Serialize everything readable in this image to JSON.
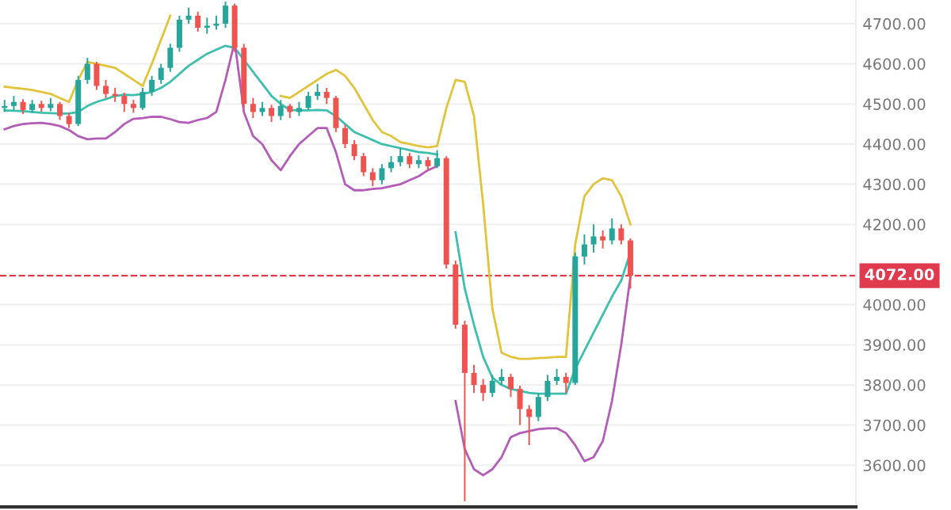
{
  "chart_data": {
    "type": "candlestick",
    "categories": [
      null,
      null,
      null,
      null,
      null,
      null,
      null,
      null,
      null,
      null,
      null,
      null,
      null,
      null,
      null,
      null,
      null,
      null,
      null,
      null,
      null,
      null,
      null,
      null,
      null,
      null,
      null,
      null,
      null,
      null,
      null,
      null,
      null,
      null,
      null,
      null,
      null,
      null,
      null,
      null,
      null,
      null,
      null,
      null,
      null,
      null,
      null,
      null,
      null,
      null,
      null,
      null,
      null,
      null,
      null,
      null,
      null,
      null,
      null,
      null,
      null,
      null,
      null,
      null,
      null,
      null,
      null,
      null,
      null,
      null,
      null,
      null,
      null,
      null,
      null,
      null,
      null,
      null,
      null,
      null,
      null,
      null,
      null,
      null,
      null,
      null,
      null,
      null,
      null,
      null,
      null,
      null,
      null
    ],
    "colors": [
      "#26a69a",
      "#26a69a",
      "#ef5350",
      "#26a69a",
      "#ef5350",
      "#26a69a",
      "#ef5350",
      "#ef5350",
      "#26a69a",
      "#26a69a",
      "#ef5350",
      "#ef5350",
      "#ef5350",
      "#ef5350",
      "#ef5350",
      "#26a69a",
      "#26a69a",
      "#26a69a",
      "#26a69a",
      "#26a69a",
      "#26a69a",
      "#ef5350",
      "#26a69a",
      "#26a69a",
      "#26a69a",
      "#ef5350",
      "#ef5350",
      "#ef5350",
      "#26a69a",
      "#ef5350",
      "#26a69a",
      "#ef5350",
      "#26a69a",
      "#26a69a",
      "#26a69a",
      "#ef5350",
      "#ef5350",
      "#ef5350",
      "#ef5350",
      "#ef5350",
      "#ef5350",
      "#26a69a",
      "#26a69a",
      "#26a69a",
      "#ef5350",
      "#26a69a",
      "#ef5350",
      "#26a69a",
      "#ef5350",
      "#ef5350",
      "#ef5350",
      "#ef5350",
      "#ef5350",
      "#26a69a",
      "#26a69a",
      "#ef5350",
      "#ef5350",
      "#ef5350",
      "#26a69a",
      "#26a69a",
      "#26a69a",
      "#ef5350",
      "#26a69a",
      "#26a69a",
      "#26a69a",
      "#ef5350",
      "#26a69a",
      "#ef5350",
      "#ef5350",
      null,
      null,
      null,
      null,
      null,
      null,
      null,
      null,
      null,
      null,
      null,
      null,
      null,
      null,
      null,
      null,
      null,
      null,
      null,
      null,
      null,
      null,
      null,
      null
    ],
    "ohlc": [
      [
        4490,
        4510,
        4480,
        4495
      ],
      [
        4495,
        4520,
        4485,
        4505
      ],
      [
        4505,
        4512,
        4475,
        4485
      ],
      [
        4485,
        4510,
        4478,
        4500
      ],
      [
        4500,
        4508,
        4480,
        4490
      ],
      [
        4490,
        4515,
        4482,
        4500
      ],
      [
        4500,
        4505,
        4460,
        4470
      ],
      [
        4470,
        4478,
        4440,
        4450
      ],
      [
        4450,
        4570,
        4445,
        4560
      ],
      [
        4560,
        4615,
        4550,
        4600
      ],
      [
        4600,
        4605,
        4535,
        4545
      ],
      [
        4545,
        4560,
        4515,
        4525
      ],
      [
        4525,
        4540,
        4505,
        4520
      ],
      [
        4520,
        4528,
        4480,
        4500
      ],
      [
        4500,
        4510,
        4478,
        4490
      ],
      [
        4490,
        4540,
        4485,
        4530
      ],
      [
        4530,
        4570,
        4520,
        4560
      ],
      [
        4560,
        4600,
        4550,
        4590
      ],
      [
        4590,
        4650,
        4580,
        4640
      ],
      [
        4640,
        4720,
        4630,
        4710
      ],
      [
        4710,
        4740,
        4700,
        4720
      ],
      [
        4720,
        4730,
        4680,
        4690
      ],
      [
        4690,
        4715,
        4675,
        4695
      ],
      [
        4695,
        4720,
        4685,
        4700
      ],
      [
        4700,
        4755,
        4690,
        4745
      ],
      [
        4745,
        4750,
        4630,
        4640
      ],
      [
        4640,
        4650,
        4490,
        4500
      ],
      [
        4500,
        4515,
        4465,
        4480
      ],
      [
        4480,
        4505,
        4470,
        4490
      ],
      [
        4490,
        4498,
        4455,
        4470
      ],
      [
        4470,
        4510,
        4460,
        4495
      ],
      [
        4495,
        4500,
        4465,
        4480
      ],
      [
        4480,
        4505,
        4470,
        4490
      ],
      [
        4490,
        4530,
        4485,
        4520
      ],
      [
        4520,
        4550,
        4510,
        4530
      ],
      [
        4530,
        4540,
        4500,
        4515
      ],
      [
        4515,
        4520,
        4430,
        4440
      ],
      [
        4440,
        4448,
        4390,
        4400
      ],
      [
        4400,
        4410,
        4360,
        4370
      ],
      [
        4370,
        4378,
        4320,
        4330
      ],
      [
        4330,
        4340,
        4295,
        4310
      ],
      [
        4310,
        4350,
        4300,
        4340
      ],
      [
        4340,
        4370,
        4330,
        4355
      ],
      [
        4355,
        4390,
        4345,
        4370
      ],
      [
        4370,
        4378,
        4340,
        4350
      ],
      [
        4350,
        4372,
        4340,
        4360
      ],
      [
        4360,
        4368,
        4335,
        4345
      ],
      [
        4345,
        4385,
        4340,
        4365
      ],
      [
        4365,
        4370,
        4090,
        4100
      ],
      [
        4100,
        4110,
        3940,
        3950
      ],
      [
        3950,
        3960,
        3510,
        3830
      ],
      [
        3830,
        3850,
        3780,
        3800
      ],
      [
        3800,
        3815,
        3760,
        3780
      ],
      [
        3780,
        3825,
        3770,
        3810
      ],
      [
        3810,
        3840,
        3800,
        3820
      ],
      [
        3820,
        3828,
        3770,
        3790
      ],
      [
        3790,
        3798,
        3700,
        3740
      ],
      [
        3740,
        3750,
        3650,
        3720
      ],
      [
        3720,
        3780,
        3710,
        3770
      ],
      [
        3770,
        3825,
        3760,
        3810
      ],
      [
        3810,
        3840,
        3800,
        3820
      ],
      [
        3820,
        3830,
        3780,
        3805
      ],
      [
        3805,
        4130,
        3800,
        4120
      ],
      [
        4120,
        4175,
        4100,
        4150
      ],
      [
        4150,
        4200,
        4130,
        4170
      ],
      [
        4170,
        4185,
        4140,
        4160
      ],
      [
        4160,
        4215,
        4150,
        4190
      ],
      [
        4190,
        4200,
        4150,
        4160
      ],
      [
        4160,
        4165,
        4040,
        4072
      ],
      null,
      null,
      null,
      null,
      null,
      null,
      null,
      null,
      null,
      null,
      null,
      null,
      null,
      null,
      null,
      null,
      null,
      null,
      null,
      null,
      null,
      null,
      null,
      null
    ],
    "series": [
      {
        "type": "line",
        "color": "#e2c43c",
        "values": [
          4543,
          4540,
          4538,
          4535,
          4530,
          4525,
          4515,
          4505,
          4560,
          4605,
          4600,
          4595,
          4590,
          4575,
          4560,
          4545,
          4600,
          4660,
          4720,
          null,
          null,
          null,
          null,
          null,
          null,
          null,
          null,
          null,
          null,
          null,
          4520,
          4515,
          4530,
          4545,
          4560,
          4575,
          4585,
          4570,
          4540,
          4500,
          4460,
          4430,
          4420,
          4405,
          4400,
          4395,
          4392,
          4395,
          4490,
          4560,
          4555,
          4470,
          4250,
          3990,
          3880,
          3870,
          3865,
          3865,
          3867,
          3868,
          3870,
          3870,
          4150,
          4270,
          4300,
          4315,
          4310,
          4270,
          4200,
          null,
          null,
          null,
          null,
          null,
          null,
          null,
          null,
          null,
          null,
          null,
          null,
          null,
          null,
          null,
          null,
          null,
          null,
          null,
          null,
          null,
          null,
          null,
          null
        ]
      },
      {
        "type": "line",
        "color": "#3dbfae",
        "values": [
          4484,
          4483,
          4482,
          4480,
          4478,
          4477,
          4476,
          4476,
          4480,
          4495,
          4505,
          4512,
          4520,
          4523,
          4522,
          4525,
          4530,
          4540,
          4555,
          4575,
          4595,
          4610,
          4625,
          4635,
          4645,
          4640,
          4610,
          4580,
          4550,
          4520,
          4500,
          4485,
          4484,
          4484,
          4485,
          4484,
          4470,
          4450,
          4430,
          4420,
          4410,
          4400,
          4395,
          4390,
          4385,
          4380,
          4378,
          4374,
          null,
          4180,
          4040,
          3950,
          3870,
          3818,
          3800,
          3790,
          3785,
          3780,
          3778,
          3778,
          3778,
          3778,
          3840,
          3885,
          3930,
          3975,
          4020,
          4060,
          4130,
          null,
          null,
          null,
          null,
          null,
          null,
          null,
          null,
          null,
          null,
          null,
          null,
          null,
          null,
          null,
          null,
          null,
          null,
          null,
          null,
          null,
          null,
          null,
          null
        ]
      },
      {
        "type": "line",
        "color": "#b35cb8",
        "values": [
          4437,
          4445,
          4450,
          4452,
          4453,
          4450,
          4445,
          4435,
          4420,
          4412,
          4414,
          4414,
          4430,
          4450,
          4463,
          4465,
          4468,
          4468,
          4462,
          4455,
          4453,
          4460,
          4465,
          4480,
          4560,
          4655,
          4480,
          4420,
          4400,
          4360,
          4335,
          4370,
          4400,
          4420,
          4440,
          4440,
          4380,
          4300,
          4285,
          4285,
          4288,
          4290,
          4295,
          4300,
          4310,
          4320,
          4335,
          4345,
          null,
          3760,
          3640,
          3590,
          3575,
          3590,
          3620,
          3670,
          3680,
          3685,
          3690,
          3692,
          3692,
          3680,
          3650,
          3610,
          3620,
          3660,
          3760,
          3900,
          4070,
          null,
          null,
          null,
          null,
          null,
          null,
          null,
          null,
          null,
          null,
          null,
          null,
          null,
          null,
          null,
          null,
          null,
          null,
          null,
          null,
          null,
          null,
          null,
          null
        ]
      }
    ],
    "ylim": [
      3496,
      4759
    ],
    "yticks": [
      {
        "value": 3600,
        "label": "3600.00"
      },
      {
        "value": 3700,
        "label": "3700.00"
      },
      {
        "value": 3800,
        "label": "3800.00"
      },
      {
        "value": 3900,
        "label": "3900.00"
      },
      {
        "value": 4000,
        "label": "4000.00"
      },
      {
        "value": 4200,
        "label": "4200.00"
      },
      {
        "value": 4300,
        "label": "4300.00"
      },
      {
        "value": 4400,
        "label": "4400.00"
      },
      {
        "value": 4500,
        "label": "4500.00"
      },
      {
        "value": 4600,
        "label": "4600.00"
      },
      {
        "value": 4700,
        "label": "4700.00"
      }
    ],
    "ref_lines": [
      {
        "axis": "y",
        "value": 4072,
        "label": "4072.00",
        "color": "#e03a4e",
        "line_style": "dashed"
      }
    ],
    "grid": "y",
    "tick_labels": "y",
    "marker": "none",
    "line_style": "solid"
  }
}
